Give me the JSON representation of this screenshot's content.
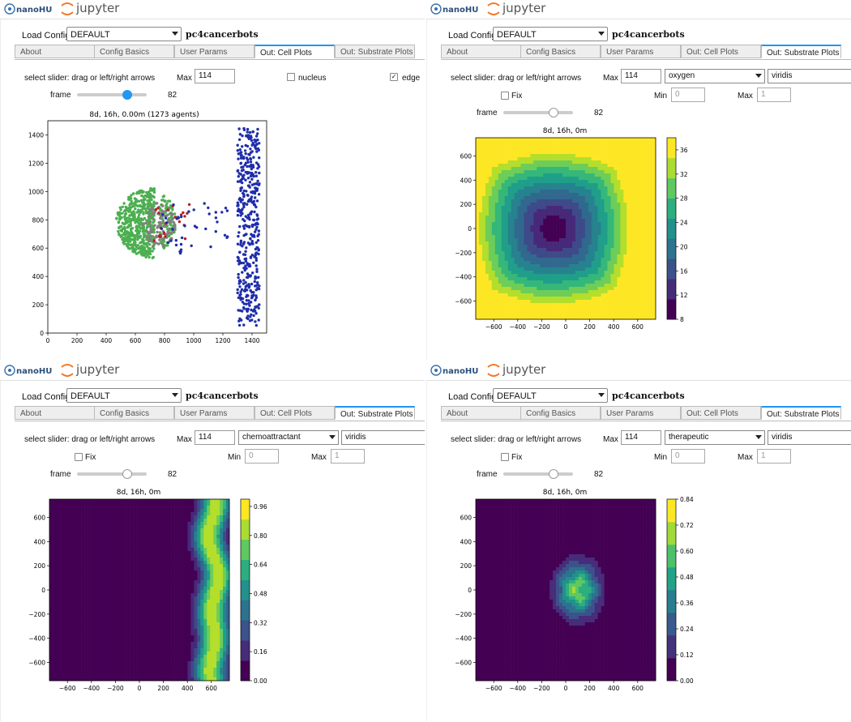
{
  "brand": {
    "nanohub": "nanoHUB",
    "jupyter": "jupyter"
  },
  "config": {
    "label": "Load Config",
    "value": "DEFAULT",
    "app": "pc4cancerbots"
  },
  "tabs": [
    "About",
    "Config Basics",
    "User Params",
    "Out: Cell Plots",
    "Out: Substrate Plots"
  ],
  "common": {
    "slider_hint": "select slider: drag or left/right arrows",
    "max_label": "Max",
    "max_value": "114",
    "frame_label": "frame",
    "frame_value": "82",
    "fix_label": "Fix",
    "min_label": "Min",
    "min_value": "0",
    "max2_value": "1",
    "colormap": "viridis"
  },
  "cell_panel": {
    "active_tab": 3,
    "nucleus": "nucleus",
    "edge": "edge",
    "nucleus_checked": false,
    "edge_checked": true,
    "chart_data": {
      "type": "scatter",
      "title": "8d, 16h, 0.00m (1273 agents)",
      "xlim": [
        0,
        1500
      ],
      "ylim": [
        0,
        1500
      ],
      "xticks": [
        "0",
        "200",
        "400",
        "600",
        "800",
        "1000",
        "1200",
        "1400"
      ],
      "yticks": [
        "0",
        "200",
        "400",
        "600",
        "800",
        "1000",
        "1200",
        "1400"
      ],
      "series": [
        {
          "color": "#4caf50",
          "region": "hemisphere centered ~(620,780) radius ~250"
        },
        {
          "color": "#808080",
          "region": "interior of cluster"
        },
        {
          "color": "#b22222",
          "region": "scattered near cluster edge"
        },
        {
          "color": "#1f2dab",
          "region": "vertical band x~1300-1450, y~50-1450 plus scattered x~800-1250"
        }
      ]
    }
  },
  "substrate_panels": [
    {
      "substrate": "oxygen",
      "chart_data": {
        "type": "heatmap",
        "title": "8d, 16h, 0m",
        "xlim": [
          -750,
          750
        ],
        "ylim": [
          -750,
          750
        ],
        "xticks": [
          "−600",
          "−400",
          "−200",
          "0",
          "200",
          "400",
          "600"
        ],
        "yticks": [
          "600",
          "400",
          "200",
          "0",
          "−200",
          "−400",
          "−600"
        ],
        "colorbar": {
          "min": 8,
          "max": 38,
          "ticks": [
            "36",
            "32",
            "28",
            "24",
            "20",
            "16",
            "12",
            "8"
          ]
        },
        "field": "minimum ~8 near (-100,0), increasing radially to ~38 at domain edges"
      }
    },
    {
      "substrate": "chemoattractant",
      "chart_data": {
        "type": "heatmap",
        "title": "8d, 16h, 0m",
        "xlim": [
          -750,
          750
        ],
        "ylim": [
          -750,
          750
        ],
        "xticks": [
          "−600",
          "−400",
          "−200",
          "0",
          "200",
          "400",
          "600"
        ],
        "yticks": [
          "600",
          "400",
          "200",
          "0",
          "−200",
          "−400",
          "−600"
        ],
        "colorbar": {
          "min": 0,
          "max": 1,
          "ticks": [
            "0.96",
            "0.80",
            "0.64",
            "0.48",
            "0.32",
            "0.16",
            "0.00"
          ]
        },
        "field": "high values in vertical band x~550-700, decaying leftward to 0 by x~300"
      }
    },
    {
      "substrate": "therapeutic",
      "chart_data": {
        "type": "heatmap",
        "title": "8d, 16h, 0m",
        "xlim": [
          -750,
          750
        ],
        "ylim": [
          -750,
          750
        ],
        "xticks": [
          "−600",
          "−400",
          "−200",
          "0",
          "200",
          "400",
          "600"
        ],
        "yticks": [
          "600",
          "400",
          "200",
          "0",
          "−200",
          "−400",
          "−600"
        ],
        "colorbar": {
          "min": 0,
          "max": 0.84,
          "ticks": [
            "0.84",
            "0.72",
            "0.60",
            "0.48",
            "0.36",
            "0.24",
            "0.12",
            "0.00"
          ]
        },
        "field": "peak ~0.84 in blob centered ~(100,0), decaying to 0 by radius ~300"
      }
    }
  ]
}
